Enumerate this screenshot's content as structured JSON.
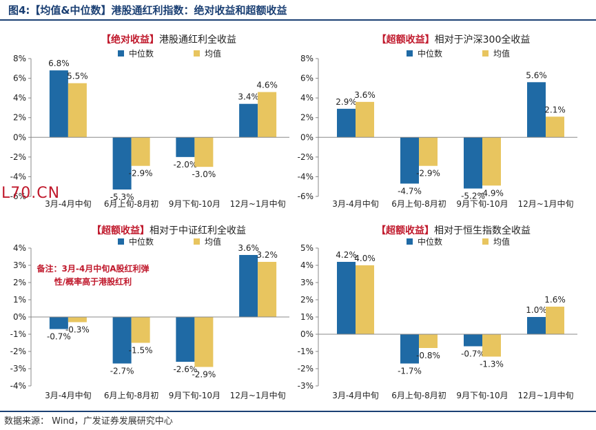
{
  "figure": {
    "title": "图4:【均值&中位数】港股通红利指数：绝对收益和超额收益",
    "source": "数据来源： Wind，广发证券发展研究中心",
    "watermark": "L70.CN"
  },
  "colors": {
    "median": "#1f6aa5",
    "mean": "#e8c55f",
    "header": "#1a3f73",
    "highlight": "#c0192c"
  },
  "chart_data": [
    {
      "type": "bar",
      "title_tag": "【绝对收益】",
      "title": "港股通红利全收益",
      "categories": [
        "3月-4月中旬",
        "6月上旬-8月初",
        "9月下旬-10月",
        "12月~1月中旬"
      ],
      "series": [
        {
          "name": "中位数",
          "values": [
            6.8,
            -5.3,
            -2.0,
            3.4
          ]
        },
        {
          "name": "均值",
          "values": [
            5.5,
            -2.9,
            -3.0,
            4.6
          ]
        }
      ],
      "ylim": [
        -6,
        8
      ],
      "yticks": [
        8,
        6,
        4,
        2,
        0,
        -2,
        -4,
        -6
      ],
      "unit": "%",
      "legend": "top-right"
    },
    {
      "type": "bar",
      "title_tag": "【超额收益】",
      "title": "相对于沪深300全收益",
      "categories": [
        "3月-4月中旬",
        "6月上旬-8月初",
        "9月下旬-10月",
        "12月~1月中旬"
      ],
      "series": [
        {
          "name": "中位数",
          "values": [
            2.9,
            -4.7,
            -5.2,
            5.6
          ]
        },
        {
          "name": "均值",
          "values": [
            3.6,
            -2.9,
            -4.9,
            2.1
          ]
        }
      ],
      "ylim": [
        -6,
        8
      ],
      "yticks": [
        8,
        6,
        4,
        2,
        0,
        -2,
        -4,
        -6
      ],
      "unit": "%",
      "legend": "top-right"
    },
    {
      "type": "bar",
      "title_tag": "【超额收益】",
      "title": "相对于中证红利全收益",
      "categories": [
        "3月-4月中旬",
        "6月上旬-8月初",
        "9月下旬-10月",
        "12月~1月中旬"
      ],
      "series": [
        {
          "name": "中位数",
          "values": [
            -0.7,
            -2.7,
            -2.6,
            3.6
          ]
        },
        {
          "name": "均值",
          "values": [
            -0.3,
            -1.5,
            -2.9,
            3.2
          ]
        }
      ],
      "ylim": [
        -4,
        4
      ],
      "yticks": [
        4,
        3,
        2,
        1,
        0,
        -1,
        -2,
        -3,
        -4
      ],
      "unit": "%",
      "legend": "top-right",
      "annotation": [
        "备注：3月-4月中旬A股红利弹",
        "性/概率高于港股红利"
      ]
    },
    {
      "type": "bar",
      "title_tag": "【超额收益】",
      "title": "相对于恒生指数全收益",
      "categories": [
        "3月-4月中旬",
        "6月上旬-8月初",
        "9月下旬-10月",
        "12月~1月中旬"
      ],
      "series": [
        {
          "name": "中位数",
          "values": [
            4.2,
            -1.7,
            -0.7,
            1.0
          ]
        },
        {
          "name": "均值",
          "values": [
            4.0,
            -0.8,
            -1.3,
            1.6
          ]
        }
      ],
      "ylim": [
        -3,
        5
      ],
      "yticks": [
        5,
        4,
        3,
        2,
        1,
        0,
        -1,
        -2,
        -3
      ],
      "unit": "%",
      "legend": "top-right"
    }
  ]
}
